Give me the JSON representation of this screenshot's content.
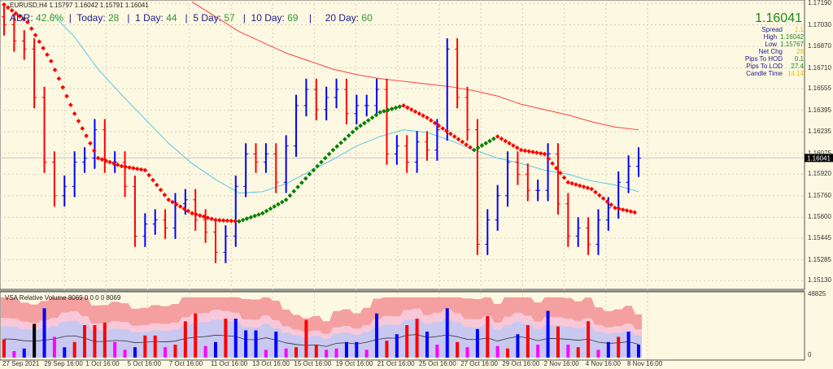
{
  "header": {
    "symbol": "EURUSD,H4",
    "ohlc": "1.15797 1.16042 1.15791 1.16041"
  },
  "adr": {
    "label": "ADR:",
    "value": "42.6%",
    "today_label": "Today:",
    "today": "28",
    "d1_label": "1 Day:",
    "d1": "44",
    "d5_label": "5 Day:",
    "d5": "57",
    "d10_label": "10 Day:",
    "d10": "69",
    "d20_label": "20 Day:",
    "d20": "60"
  },
  "info": {
    "price": "1.16041",
    "rows": [
      {
        "label": "Spread",
        "value": "1.1",
        "color": "#e8c000"
      },
      {
        "label": "High",
        "value": "1.16042",
        "color": "#1a8a1a"
      },
      {
        "label": "Low",
        "value": "1.15767",
        "color": "#1a8a1a"
      },
      {
        "label": "Net Chg",
        "value": "28",
        "color": "#e8c000"
      },
      {
        "label": "Pips To HOD",
        "value": "0.1",
        "color": "#1a8a1a"
      },
      {
        "label": "Pips To LOD",
        "value": "27.4",
        "color": "#1a8a1a"
      },
      {
        "label": "Candle Time",
        "value": "14:14",
        "color": "#e8c000"
      }
    ]
  },
  "volume_panel": {
    "title": "VSA Relative Volume 8069 0 0 0 0 8069",
    "max_label": "48825",
    "min_label": "0"
  },
  "chart_data": {
    "type": "ohlc-line",
    "ylim": [
      1.1509,
      1.1722
    ],
    "yticks": [
      "1.17190",
      "1.17030",
      "1.16870",
      "1.16710",
      "1.16555",
      "1.16395",
      "1.16235",
      "1.16075",
      "1.15920",
      "1.15760",
      "1.15600",
      "1.15445",
      "1.15285",
      "1.15130"
    ],
    "current_price": "1.16041",
    "xticks": [
      "27 Sep 2021",
      "29 Sep 16:00",
      "1 Oct 16:00",
      "5 Oct 16:00",
      "7 Oct 16:00",
      "11 Oct 16:00",
      "13 Oct 16:00",
      "15 Oct 16:00",
      "19 Oct 16:00",
      "21 Oct 16:00",
      "25 Oct 16:00",
      "27 Oct 16:00",
      "29 Oct 16:00",
      "2 Nov 16:00",
      "4 Nov 16:00",
      "8 Nov 16:00"
    ],
    "grid": true,
    "closes": [
      1.1703,
      1.1691,
      1.1685,
      1.1649,
      1.1601,
      1.1576,
      1.1583,
      1.1601,
      1.1604,
      1.1625,
      1.1601,
      1.1601,
      1.1583,
      1.1546,
      1.1555,
      1.1558,
      1.1552,
      1.157,
      1.1573,
      1.1558,
      1.1549,
      1.1534,
      1.1546,
      1.1583,
      1.1607,
      1.1601,
      1.1607,
      1.1586,
      1.1613,
      1.1643,
      1.1655,
      1.164,
      1.1649,
      1.1655,
      1.1637,
      1.1643,
      1.1643,
      1.1655,
      1.1607,
      1.1613,
      1.1601,
      1.1616,
      1.161,
      1.1625,
      1.1685,
      1.1649,
      1.1625,
      1.154,
      1.1558,
      1.1576,
      1.1601,
      1.1592,
      1.158,
      1.158,
      1.1607,
      1.157,
      1.1546,
      1.1552,
      1.154,
      1.1558,
      1.1567,
      1.1586,
      1.1598,
      1.1604
    ],
    "trend_ma": [
      1.1718,
      1.1705,
      1.1676,
      1.1637,
      1.1604,
      1.1598,
      1.1595,
      1.1573,
      1.1563,
      1.1558,
      1.1557,
      1.1563,
      1.1573,
      1.1592,
      1.161,
      1.1626,
      1.1638,
      1.1643,
      1.1634,
      1.1622,
      1.161,
      1.162,
      1.161,
      1.1607,
      1.1586,
      1.1581,
      1.1567,
      1.1563
    ],
    "fast_ma": [
      null,
      null,
      1.1712,
      1.1694,
      1.167,
      1.1651,
      1.1633,
      1.1615,
      1.16,
      1.1588,
      1.1578,
      1.1579,
      1.1585,
      1.1594,
      1.1603,
      1.1613,
      1.162,
      1.1625,
      1.1623,
      1.1617,
      1.161,
      1.1604,
      1.16,
      1.1595,
      1.1592,
      1.1587,
      1.1584,
      1.1579
    ],
    "slow_ma": [
      null,
      null,
      null,
      null,
      null,
      null,
      null,
      null,
      1.172,
      1.1709,
      1.1698,
      1.169,
      1.1682,
      1.1676,
      1.167,
      1.1666,
      1.1663,
      1.1661,
      1.1659,
      1.1657,
      1.1654,
      1.165,
      1.1644,
      1.164,
      1.1636,
      1.1631,
      1.1627,
      1.1625
    ],
    "volume": {
      "ymax": 48825,
      "values": [
        14000,
        5000,
        7000,
        26000,
        38000,
        16000,
        8000,
        12000,
        25000,
        25000,
        27000,
        12000,
        6000,
        8000,
        17000,
        17000,
        8000,
        10000,
        28000,
        34000,
        9000,
        12000,
        30000,
        30000,
        21000,
        21000,
        6000,
        20000,
        7000,
        8000,
        29000,
        10000,
        6000,
        7000,
        12000,
        12000,
        6000,
        34000,
        13000,
        18000,
        25000,
        30000,
        20000,
        10000,
        38000,
        12000,
        8000,
        22000,
        32000,
        9000,
        7000,
        18000,
        25000,
        10000,
        36000,
        24000,
        10000,
        8000,
        28000,
        6000,
        12000,
        16000,
        20000,
        10000
      ],
      "colors": [
        "red",
        "magenta",
        "blue",
        "black",
        "blue",
        "magenta",
        "blue",
        "red",
        "red",
        "red",
        "red",
        "magenta",
        "magenta",
        "blue",
        "red",
        "red",
        "magenta",
        "red",
        "red",
        "red",
        "magenta",
        "blue",
        "red",
        "blue",
        "blue",
        "blue",
        "magenta",
        "blue",
        "magenta",
        "red",
        "red",
        "red",
        "magenta",
        "magenta",
        "blue",
        "blue",
        "magenta",
        "blue",
        "red",
        "blue",
        "red",
        "red",
        "blue",
        "magenta",
        "blue",
        "red",
        "magenta",
        "blue",
        "red",
        "magenta",
        "red",
        "blue",
        "red",
        "magenta",
        "blue",
        "red",
        "magenta",
        "red",
        "red",
        "magenta",
        "blue",
        "red",
        "blue",
        "blue"
      ]
    }
  },
  "colors": {
    "up": "#0000ff",
    "down": "#ff0000",
    "ma_up": "#008000",
    "ma_down": "#ff0000",
    "fast_ma": "#5bc8e8",
    "slow_ma": "#ff4040",
    "background": "#fdf8e1"
  }
}
